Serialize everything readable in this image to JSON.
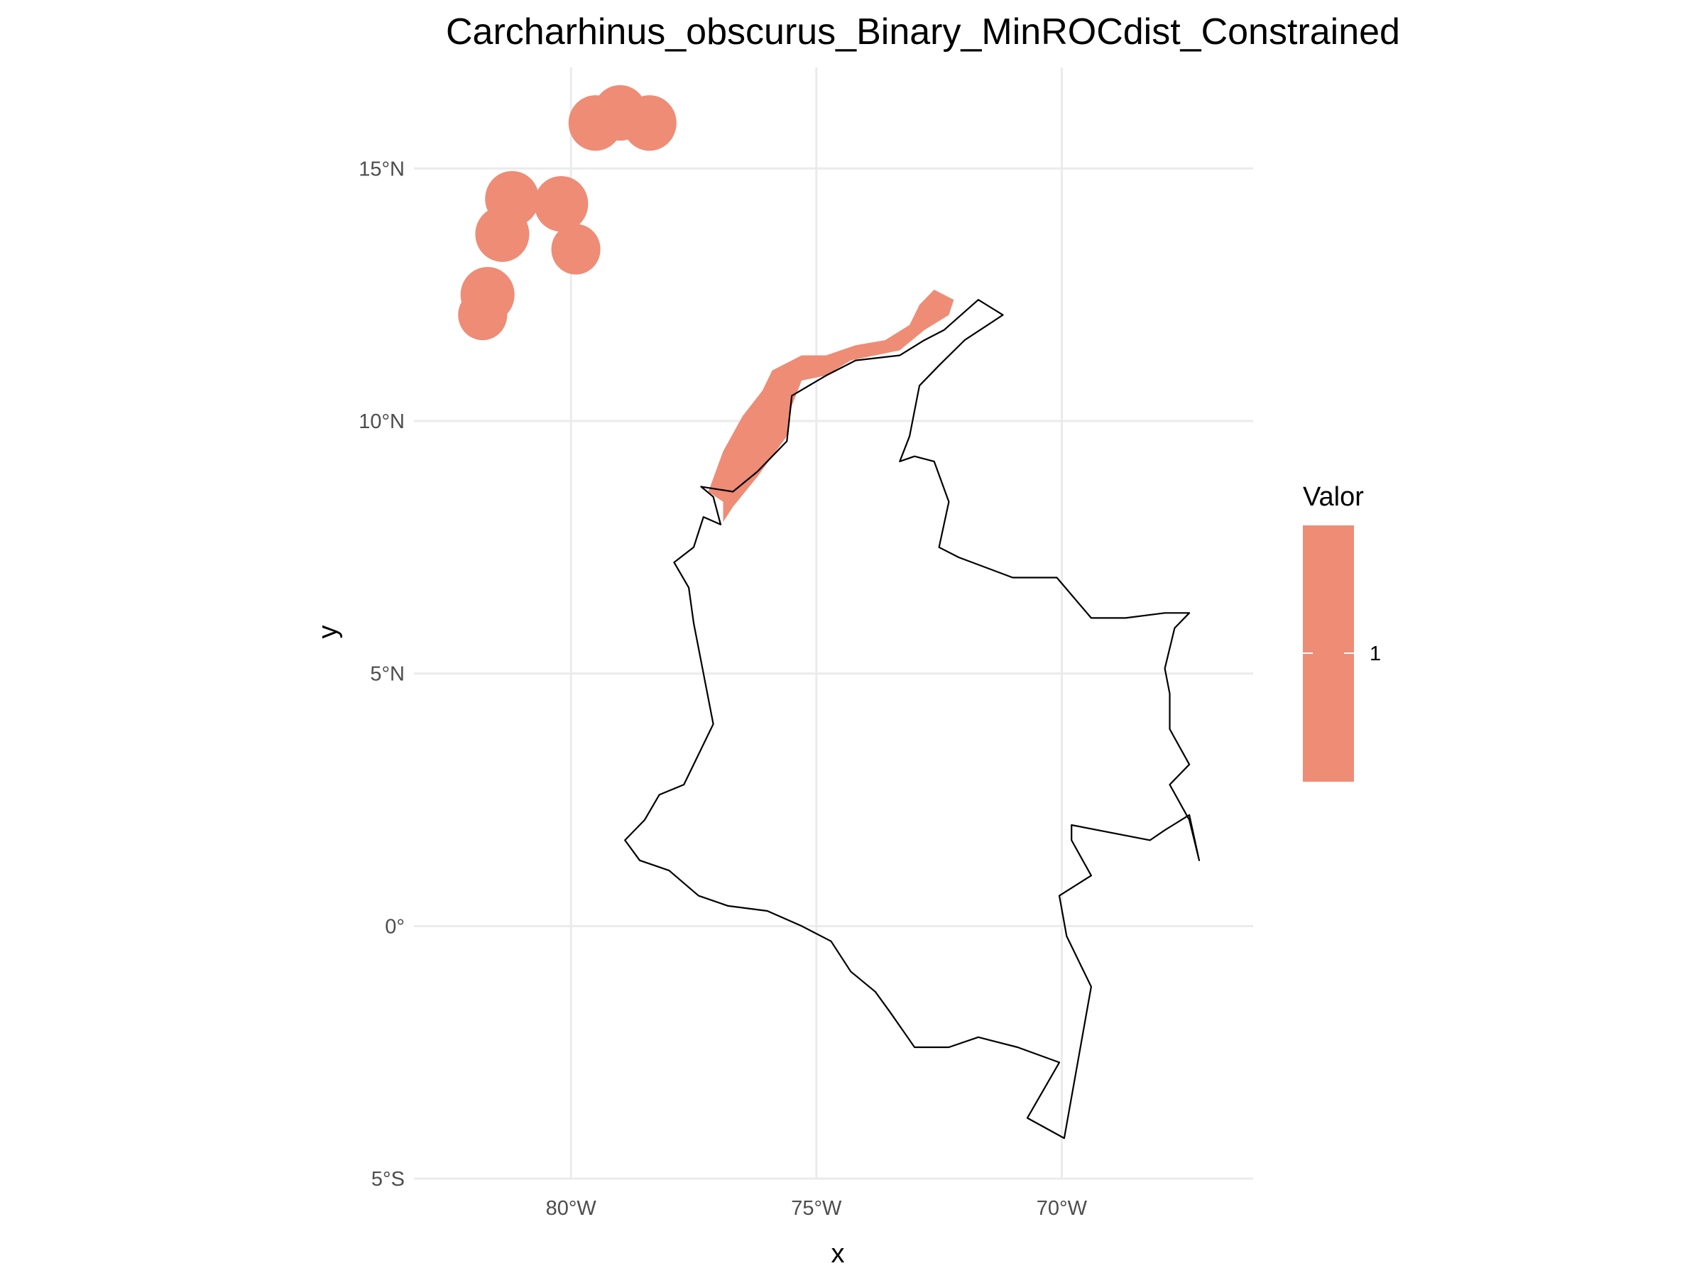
{
  "title": "Carcharhinus_obscurus_Binary_MinROCdist_Constrained",
  "axes": {
    "xlabel": "x",
    "ylabel": "y",
    "x_ticks": [
      {
        "value": -80,
        "label": "80°W"
      },
      {
        "value": -75,
        "label": "75°W"
      },
      {
        "value": -70,
        "label": "70°W"
      }
    ],
    "y_ticks": [
      {
        "value": 15,
        "label": "15°N"
      },
      {
        "value": 10,
        "label": "10°N"
      },
      {
        "value": 5,
        "label": "5°N"
      },
      {
        "value": 0,
        "label": "0°"
      },
      {
        "value": -5,
        "label": "5°S"
      }
    ]
  },
  "legend": {
    "title": "Valor",
    "entries": [
      {
        "label": "1",
        "color": "#ee8c76"
      }
    ],
    "position": "right"
  },
  "colors": {
    "raster": "#ee8c76",
    "outline": "#000000",
    "grid": "#ebebeb"
  },
  "chart_data": {
    "type": "map",
    "title": "Carcharhinus_obscurus_Binary_MinROCdist_Constrained",
    "xlabel": "x",
    "ylabel": "y",
    "xlim": [
      -83.2,
      -66.1
    ],
    "ylim": [
      -5.0,
      17.0
    ],
    "grid": true,
    "raster_value": 1,
    "island_patches": [
      {
        "lon": -79.5,
        "lat": 15.9,
        "r": 0.55
      },
      {
        "lon": -79.0,
        "lat": 16.1,
        "r": 0.55
      },
      {
        "lon": -78.4,
        "lat": 15.9,
        "r": 0.55
      },
      {
        "lon": -81.2,
        "lat": 14.4,
        "r": 0.55
      },
      {
        "lon": -80.2,
        "lat": 14.3,
        "r": 0.55
      },
      {
        "lon": -81.4,
        "lat": 13.7,
        "r": 0.55
      },
      {
        "lon": -79.9,
        "lat": 13.4,
        "r": 0.5
      },
      {
        "lon": -81.7,
        "lat": 12.5,
        "r": 0.55
      },
      {
        "lon": -81.8,
        "lat": 12.1,
        "r": 0.5
      }
    ],
    "coastal_band": [
      [
        -77.2,
        8.6
      ],
      [
        -76.9,
        9.4
      ],
      [
        -76.5,
        10.1
      ],
      [
        -76.1,
        10.6
      ],
      [
        -75.9,
        11.0
      ],
      [
        -75.3,
        11.3
      ],
      [
        -74.8,
        11.3
      ],
      [
        -74.2,
        11.5
      ],
      [
        -73.6,
        11.6
      ],
      [
        -73.1,
        11.9
      ],
      [
        -72.9,
        12.3
      ],
      [
        -72.6,
        12.6
      ],
      [
        -72.2,
        12.4
      ],
      [
        -72.3,
        12.1
      ],
      [
        -72.8,
        11.8
      ],
      [
        -73.3,
        11.4
      ],
      [
        -73.8,
        11.3
      ],
      [
        -74.3,
        11.2
      ],
      [
        -74.8,
        10.9
      ],
      [
        -75.3,
        10.8
      ],
      [
        -75.5,
        10.3
      ],
      [
        -75.6,
        9.7
      ],
      [
        -75.9,
        9.3
      ],
      [
        -76.2,
        8.9
      ],
      [
        -76.7,
        8.3
      ],
      [
        -76.9,
        8.0
      ],
      [
        -76.9,
        8.4
      ]
    ],
    "country_outline": [
      [
        -77.35,
        8.7
      ],
      [
        -77.1,
        8.5
      ],
      [
        -76.95,
        7.95
      ],
      [
        -77.3,
        8.1
      ],
      [
        -77.5,
        7.5
      ],
      [
        -77.9,
        7.2
      ],
      [
        -77.6,
        6.7
      ],
      [
        -77.5,
        6.0
      ],
      [
        -77.3,
        5.0
      ],
      [
        -77.1,
        4.0
      ],
      [
        -77.4,
        3.4
      ],
      [
        -77.7,
        2.8
      ],
      [
        -78.2,
        2.6
      ],
      [
        -78.5,
        2.1
      ],
      [
        -78.9,
        1.7
      ],
      [
        -78.6,
        1.3
      ],
      [
        -78.0,
        1.1
      ],
      [
        -77.4,
        0.6
      ],
      [
        -76.8,
        0.4
      ],
      [
        -76.0,
        0.3
      ],
      [
        -75.3,
        0.0
      ],
      [
        -74.7,
        -0.3
      ],
      [
        -74.3,
        -0.9
      ],
      [
        -73.8,
        -1.3
      ],
      [
        -73.5,
        -1.7
      ],
      [
        -73.0,
        -2.4
      ],
      [
        -72.3,
        -2.4
      ],
      [
        -71.7,
        -2.2
      ],
      [
        -70.9,
        -2.4
      ],
      [
        -70.05,
        -2.7
      ],
      [
        -70.7,
        -3.8
      ],
      [
        -69.95,
        -4.2
      ],
      [
        -69.4,
        -1.2
      ],
      [
        -69.9,
        -0.2
      ],
      [
        -70.05,
        0.6
      ],
      [
        -69.4,
        1.0
      ],
      [
        -69.8,
        1.7
      ],
      [
        -69.8,
        2.0
      ],
      [
        -68.2,
        1.7
      ],
      [
        -67.9,
        1.9
      ],
      [
        -67.4,
        2.2
      ],
      [
        -67.2,
        1.3
      ],
      [
        -67.4,
        2.1
      ],
      [
        -67.8,
        2.8
      ],
      [
        -67.4,
        3.2
      ],
      [
        -67.8,
        3.9
      ],
      [
        -67.8,
        4.6
      ],
      [
        -67.9,
        5.1
      ],
      [
        -67.7,
        5.9
      ],
      [
        -67.4,
        6.2
      ],
      [
        -67.9,
        6.2
      ],
      [
        -68.7,
        6.1
      ],
      [
        -69.4,
        6.1
      ],
      [
        -70.1,
        6.9
      ],
      [
        -71.0,
        6.9
      ],
      [
        -72.1,
        7.3
      ],
      [
        -72.5,
        7.5
      ],
      [
        -72.3,
        8.4
      ],
      [
        -72.6,
        9.2
      ],
      [
        -73.0,
        9.3
      ],
      [
        -73.3,
        9.2
      ],
      [
        -73.1,
        9.7
      ],
      [
        -72.9,
        10.7
      ],
      [
        -72.5,
        11.1
      ],
      [
        -71.98,
        11.6
      ],
      [
        -71.2,
        12.1
      ],
      [
        -71.7,
        12.4
      ],
      [
        -72.4,
        11.8
      ],
      [
        -72.8,
        11.6
      ],
      [
        -73.3,
        11.3
      ],
      [
        -74.2,
        11.2
      ],
      [
        -74.8,
        10.9
      ],
      [
        -75.5,
        10.5
      ],
      [
        -75.6,
        9.6
      ],
      [
        -76.2,
        9.0
      ],
      [
        -76.7,
        8.6
      ],
      [
        -77.35,
        8.7
      ]
    ]
  }
}
